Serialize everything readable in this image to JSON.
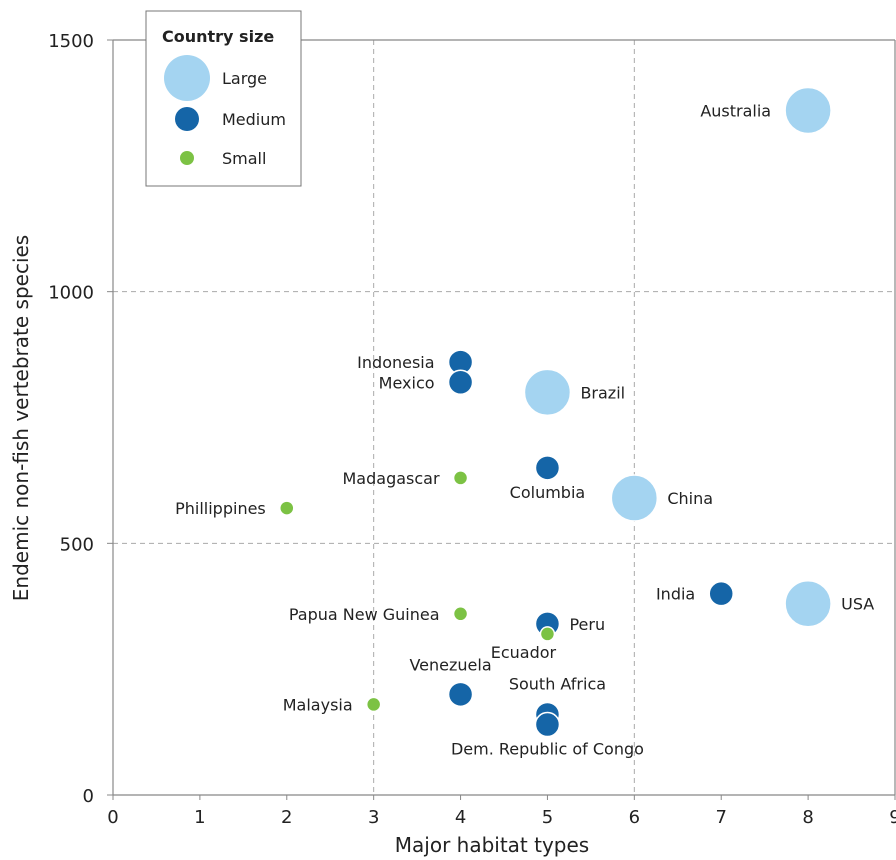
{
  "chart_data": {
    "type": "scatter",
    "xlabel": "Major habitat types",
    "ylabel": "Endemic non-fish vertebrate species",
    "xlim": [
      0,
      9
    ],
    "ylim": [
      0,
      1500
    ],
    "x_ticks": [
      0,
      1,
      2,
      3,
      4,
      5,
      6,
      7,
      8,
      9
    ],
    "y_ticks": [
      0,
      500,
      1000,
      1500
    ],
    "gridlines_x": [
      3,
      6
    ],
    "gridlines_y": [
      500,
      1000
    ],
    "grid_style": "dashed",
    "legend": {
      "title": "Country size",
      "placement": "top-left",
      "entries": [
        {
          "label": "Large",
          "category": "large"
        },
        {
          "label": "Medium",
          "category": "medium"
        },
        {
          "label": "Small",
          "category": "small"
        }
      ]
    },
    "categories": {
      "large": {
        "color": "#a4d4f1"
      },
      "medium": {
        "color": "#1565a7"
      },
      "small": {
        "color": "#7cc244"
      }
    },
    "points": [
      {
        "label": "Australia",
        "x": 8,
        "y": 1360,
        "size": "large",
        "label_side": "left"
      },
      {
        "label": "Indonesia",
        "x": 4,
        "y": 860,
        "size": "medium",
        "label_side": "left"
      },
      {
        "label": "Mexico",
        "x": 4,
        "y": 820,
        "size": "medium",
        "label_side": "left"
      },
      {
        "label": "Brazil",
        "x": 5,
        "y": 800,
        "size": "large",
        "label_side": "right"
      },
      {
        "label": "Columbia",
        "x": 5,
        "y": 650,
        "size": "medium",
        "label_side": "below"
      },
      {
        "label": "Madagascar",
        "x": 4,
        "y": 630,
        "size": "small",
        "label_side": "left"
      },
      {
        "label": "China",
        "x": 6,
        "y": 590,
        "size": "large",
        "label_side": "right"
      },
      {
        "label": "Phillippines",
        "x": 2,
        "y": 570,
        "size": "small",
        "label_side": "left"
      },
      {
        "label": "India",
        "x": 7,
        "y": 400,
        "size": "medium",
        "label_side": "left"
      },
      {
        "label": "USA",
        "x": 8,
        "y": 380,
        "size": "large",
        "label_side": "right"
      },
      {
        "label": "Papua New Guinea",
        "x": 4,
        "y": 360,
        "size": "small",
        "label_side": "left"
      },
      {
        "label": "Peru",
        "x": 5,
        "y": 340,
        "size": "medium",
        "label_side": "right"
      },
      {
        "label": "Ecuador",
        "x": 5,
        "y": 320,
        "size": "small",
        "label_side": "below-left"
      },
      {
        "label": "Venezuela",
        "x": 4,
        "y": 200,
        "size": "medium",
        "label_side": "above"
      },
      {
        "label": "Malaysia",
        "x": 3,
        "y": 180,
        "size": "small",
        "label_side": "left"
      },
      {
        "label": "South Africa",
        "x": 5,
        "y": 160,
        "size": "medium",
        "label_side": "above-right"
      },
      {
        "label": "Dem. Republic of Congo",
        "x": 5,
        "y": 140,
        "size": "medium",
        "label_side": "below"
      }
    ]
  }
}
